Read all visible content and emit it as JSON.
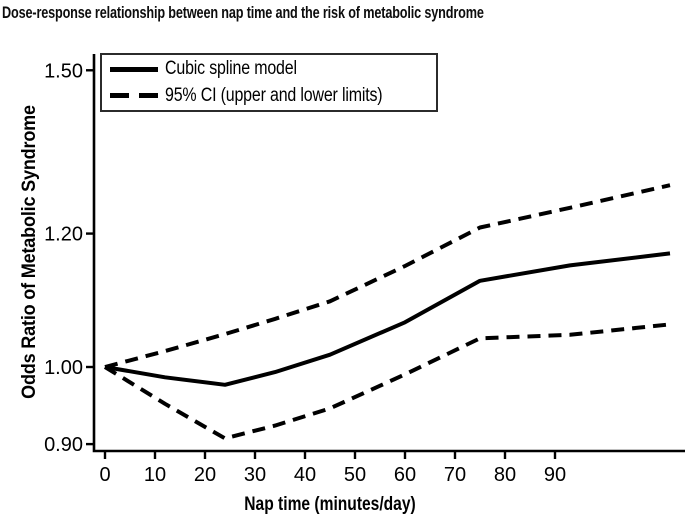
{
  "chart_data": {
    "type": "line",
    "title": "Dose-response relationship between nap time and the risk of metabolic syndrome",
    "xlabel": "Nap time (minutes/day)",
    "ylabel": "Odds Ratio of Metabolic Syndrome",
    "y_scale": "log",
    "xlim": [
      0,
      116
    ],
    "ylim": [
      0.88,
      1.55
    ],
    "grid": false,
    "legend_position": "top-left",
    "x_ticks": [
      {
        "value": 0,
        "label": "0"
      },
      {
        "value": 10,
        "label": "10"
      },
      {
        "value": 20,
        "label": "20"
      },
      {
        "value": 30,
        "label": "30"
      },
      {
        "value": 40,
        "label": "40"
      },
      {
        "value": 50,
        "label": "50"
      },
      {
        "value": 60,
        "label": "60"
      },
      {
        "value": 70,
        "label": "70"
      },
      {
        "value": 80,
        "label": "80"
      },
      {
        "value": 90,
        "label": "90"
      }
    ],
    "y_ticks": [
      {
        "value": 1.5,
        "label": "1.50"
      },
      {
        "value": 1.2,
        "label": "1.20"
      },
      {
        "value": 1.0,
        "label": "1.00"
      },
      {
        "value": 0.9,
        "label": "0.90"
      }
    ],
    "series": [
      {
        "key": "cubic-spline",
        "name": "Cubic spline model",
        "style": "solid",
        "x": [
          0,
          12,
          24,
          34,
          45,
          60,
          75,
          93,
          113
        ],
        "y": [
          1.0,
          0.986,
          0.976,
          0.993,
          1.017,
          1.063,
          1.125,
          1.149,
          1.168
        ]
      },
      {
        "key": "ci-upper",
        "name": "95% CI upper limit",
        "style": "dashed",
        "x": [
          0,
          12,
          24,
          34,
          45,
          60,
          75,
          93,
          113
        ],
        "y": [
          1.0,
          1.022,
          1.046,
          1.068,
          1.094,
          1.148,
          1.21,
          1.243,
          1.282
        ]
      },
      {
        "key": "ci-lower",
        "name": "95% CI lower limit",
        "style": "dashed",
        "x": [
          0,
          12,
          24,
          34,
          45,
          60,
          75,
          93,
          113
        ],
        "y": [
          1.0,
          0.951,
          0.907,
          0.923,
          0.945,
          0.99,
          1.04,
          1.045,
          1.06
        ]
      }
    ],
    "legend": {
      "entries": [
        {
          "label": "Cubic spline model",
          "style": "solid"
        },
        {
          "label": "95% CI (upper and lower limits)",
          "style": "dashed"
        }
      ]
    },
    "colors": {
      "line": "#000000",
      "background": "#ffffff",
      "text": "#000000"
    }
  }
}
